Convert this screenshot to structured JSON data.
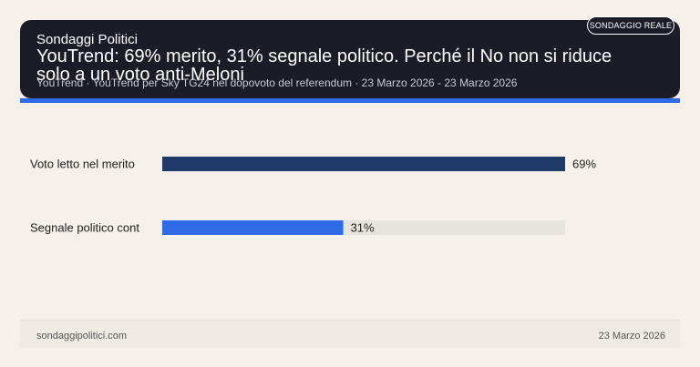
{
  "header": {
    "brand": "Sondaggi Politici",
    "title": "YouTrend: 69% merito, 31% segnale politico. Perché il No non si riduce solo a un voto anti-Meloni",
    "subtitle": "YouTrend · YouTrend per Sky TG24 nel dopovoto del referendum · 23 Marzo 2026 - 23 Marzo 2026",
    "badge": "SONDAGGIO REALE"
  },
  "chart_data": {
    "type": "bar",
    "orientation": "horizontal",
    "categories": [
      "Voto letto nel merito",
      "Segnale politico cont"
    ],
    "values": [
      69,
      31
    ],
    "value_labels": [
      "69%",
      "31%"
    ],
    "xlim": [
      0,
      69
    ],
    "colors": [
      "#1f3a6b",
      "#2e6be6"
    ],
    "track_color": "#e7e3dd"
  },
  "footer": {
    "site": "sondaggipolitici.com",
    "date": "23 Marzo 2026"
  }
}
